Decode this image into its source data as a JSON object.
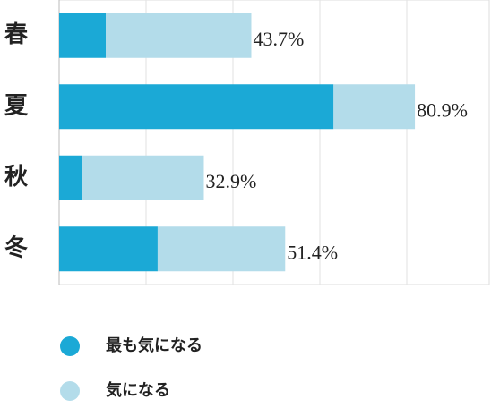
{
  "chart_data": {
    "type": "stacked-barh",
    "categories": [
      "春",
      "夏",
      "秋",
      "冬"
    ],
    "series": [
      {
        "name": "最も気になる",
        "color": "#1ba9d6",
        "values": [
          10.6,
          62.4,
          5.3,
          22.4
        ]
      },
      {
        "name": "気になる",
        "color": "#b3dcea",
        "values": [
          33.1,
          18.5,
          27.6,
          29.0
        ]
      }
    ],
    "totals": [
      43.7,
      80.9,
      32.9,
      51.4
    ],
    "total_labels": [
      "43.7%",
      "80.9%",
      "32.9%",
      "51.4%"
    ],
    "xlim": [
      0,
      98
    ]
  }
}
